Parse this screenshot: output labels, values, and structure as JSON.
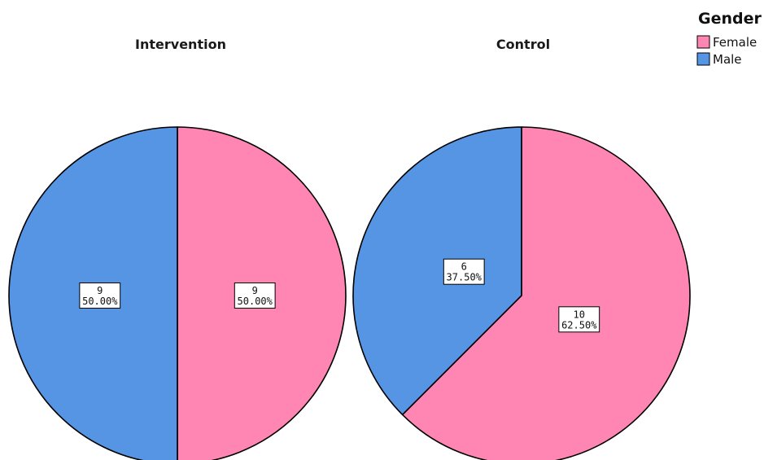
{
  "chart_data": {
    "type": "pie",
    "legend": {
      "title": "Gender",
      "placement": "top-right",
      "entries": [
        {
          "label": "Female",
          "color": "#ff85b3"
        },
        {
          "label": "Male",
          "color": "#5595e3"
        }
      ]
    },
    "pies": [
      {
        "title": "Intervention",
        "slices": [
          {
            "label": "Female",
            "count": 9,
            "percent": "50.00%",
            "color": "#ff85b3"
          },
          {
            "label": "Male",
            "count": 9,
            "percent": "50.00%",
            "color": "#5595e3"
          }
        ]
      },
      {
        "title": "Control",
        "slices": [
          {
            "label": "Female",
            "count": 10,
            "percent": "62.50%",
            "color": "#ff85b3"
          },
          {
            "label": "Male",
            "count": 6,
            "percent": "37.50%",
            "color": "#5595e3"
          }
        ]
      }
    ]
  }
}
